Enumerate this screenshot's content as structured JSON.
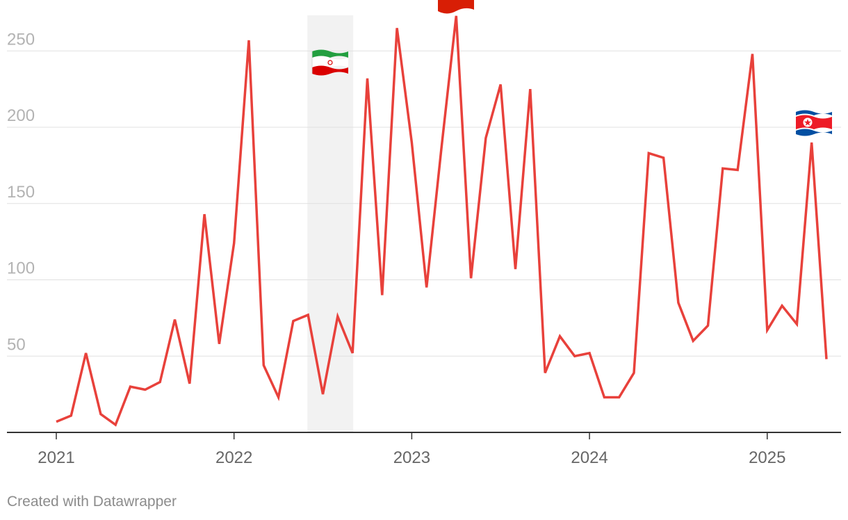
{
  "chart_data": {
    "type": "line",
    "title": "",
    "xlabel": "",
    "ylabel": "",
    "ylim": [
      0,
      262
    ],
    "yticks": [
      50,
      100,
      150,
      200,
      250
    ],
    "xlim": [
      "2020-12",
      "2025-05"
    ],
    "xticks": [
      "2021",
      "2022",
      "2023",
      "2024",
      "2025"
    ],
    "grid": true,
    "series": [
      {
        "color": "#e8413b",
        "points": [
          [
            "2021-01",
            7
          ],
          [
            "2021-02",
            11
          ],
          [
            "2021-03",
            52
          ],
          [
            "2021-04",
            12
          ],
          [
            "2021-05",
            5
          ],
          [
            "2021-06",
            30
          ],
          [
            "2021-07",
            28
          ],
          [
            "2021-08",
            33
          ],
          [
            "2021-09",
            74
          ],
          [
            "2021-10",
            32
          ],
          [
            "2021-11",
            143
          ],
          [
            "2021-12",
            58
          ],
          [
            "2022-01",
            124
          ],
          [
            "2022-02",
            257
          ],
          [
            "2022-03",
            44
          ],
          [
            "2022-04",
            23
          ],
          [
            "2022-05",
            73
          ],
          [
            "2022-06",
            77
          ],
          [
            "2022-07",
            25
          ],
          [
            "2022-08",
            76
          ],
          [
            "2022-09",
            52
          ],
          [
            "2022-10",
            232
          ],
          [
            "2022-11",
            90
          ],
          [
            "2022-12",
            265
          ],
          [
            "2023-01",
            190
          ],
          [
            "2023-02",
            95
          ],
          [
            "2023-03",
            186
          ],
          [
            "2023-04",
            273
          ],
          [
            "2023-05",
            101
          ],
          [
            "2023-06",
            193
          ],
          [
            "2023-07",
            228
          ],
          [
            "2023-08",
            107
          ],
          [
            "2023-09",
            225
          ],
          [
            "2023-10",
            39
          ],
          [
            "2023-11",
            63
          ],
          [
            "2023-12",
            50
          ],
          [
            "2024-01",
            52
          ],
          [
            "2024-02",
            23
          ],
          [
            "2024-03",
            23
          ],
          [
            "2024-04",
            39
          ],
          [
            "2024-05",
            183
          ],
          [
            "2024-06",
            180
          ],
          [
            "2024-07",
            85
          ],
          [
            "2024-08",
            60
          ],
          [
            "2024-09",
            70
          ],
          [
            "2024-10",
            173
          ],
          [
            "2024-11",
            172
          ],
          [
            "2024-12",
            248
          ],
          [
            "2025-01",
            67
          ],
          [
            "2025-02",
            83
          ],
          [
            "2025-03",
            71
          ],
          [
            "2025-04",
            190
          ],
          [
            "2025-05",
            48
          ]
        ]
      }
    ],
    "highlight_band": {
      "from": "2022-06",
      "to": "2022-09",
      "color": "#f2f2f2"
    },
    "annotations": [
      {
        "icon": "iran-flag-icon",
        "near": "2022-07"
      },
      {
        "icon": "red-flag-icon",
        "near": "2023-04"
      },
      {
        "icon": "north-korea-flag-icon",
        "near": "2025-04"
      }
    ]
  },
  "footer": {
    "credit": "Created with Datawrapper"
  }
}
